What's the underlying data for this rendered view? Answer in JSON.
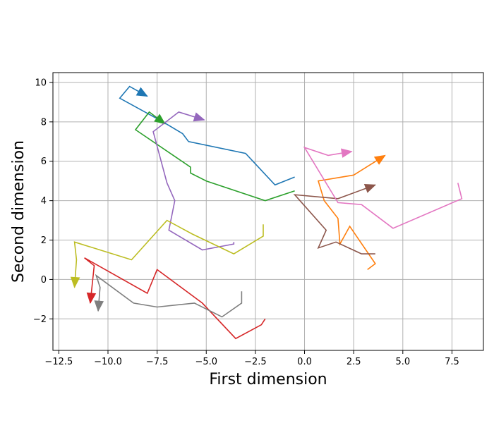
{
  "chart_data": {
    "type": "line",
    "title": "",
    "xlabel": "First dimension",
    "ylabel": "Second dimension",
    "xlim": [
      -12.8,
      9.1
    ],
    "ylim": [
      -3.6,
      10.5
    ],
    "xticks": [
      -12.5,
      -10.0,
      -7.5,
      -5.0,
      -2.5,
      0.0,
      2.5,
      5.0,
      7.5
    ],
    "xtick_labels": [
      "−12.5",
      "−10.0",
      "−7.5",
      "−5.0",
      "−2.5",
      "0.0",
      "2.5",
      "5.0",
      "7.5"
    ],
    "yticks": [
      -2,
      0,
      2,
      4,
      6,
      8,
      10
    ],
    "ytick_labels": [
      "−2",
      "0",
      "2",
      "4",
      "6",
      "8",
      "10"
    ],
    "grid": true,
    "series": [
      {
        "color": "#1f77b4",
        "points": [
          [
            -0.5,
            5.2
          ],
          [
            -1.5,
            4.8
          ],
          [
            -3.0,
            6.4
          ],
          [
            -5.9,
            7.0
          ],
          [
            -6.2,
            7.4
          ],
          [
            -7.2,
            8.0
          ],
          [
            -9.4,
            9.2
          ],
          [
            -8.9,
            9.8
          ],
          [
            -8.0,
            9.3
          ]
        ]
      },
      {
        "color": "#ff7f0e",
        "points": [
          [
            3.2,
            0.5
          ],
          [
            3.6,
            0.8
          ],
          [
            2.3,
            2.7
          ],
          [
            1.8,
            1.8
          ],
          [
            1.7,
            3.1
          ],
          [
            1.0,
            4.0
          ],
          [
            0.7,
            5.0
          ],
          [
            2.5,
            5.3
          ],
          [
            4.1,
            6.3
          ]
        ]
      },
      {
        "color": "#2ca02c",
        "points": [
          [
            -0.5,
            4.5
          ],
          [
            -2.0,
            4.0
          ],
          [
            -5.0,
            5.0
          ],
          [
            -5.8,
            5.4
          ],
          [
            -5.8,
            5.7
          ],
          [
            -8.6,
            7.6
          ],
          [
            -7.9,
            8.5
          ],
          [
            -7.1,
            7.9
          ]
        ]
      },
      {
        "color": "#d62728",
        "points": [
          [
            -2.0,
            -2.0
          ],
          [
            -2.2,
            -2.3
          ],
          [
            -3.5,
            -3.0
          ],
          [
            -5.2,
            -1.2
          ],
          [
            -7.5,
            0.5
          ],
          [
            -8.0,
            -0.7
          ],
          [
            -11.2,
            1.1
          ],
          [
            -10.7,
            0.7
          ],
          [
            -10.9,
            -1.2
          ]
        ]
      },
      {
        "color": "#9467bd",
        "points": [
          [
            -3.6,
            1.9
          ],
          [
            -3.6,
            1.8
          ],
          [
            -5.2,
            1.5
          ],
          [
            -6.9,
            2.5
          ],
          [
            -6.6,
            4.0
          ],
          [
            -7.0,
            4.9
          ],
          [
            -7.7,
            7.5
          ],
          [
            -6.4,
            8.5
          ],
          [
            -5.1,
            8.1
          ]
        ]
      },
      {
        "color": "#8c564b",
        "points": [
          [
            3.6,
            1.3
          ],
          [
            2.9,
            1.3
          ],
          [
            1.6,
            1.9
          ],
          [
            0.7,
            1.6
          ],
          [
            1.1,
            2.5
          ],
          [
            -0.5,
            4.3
          ],
          [
            1.7,
            4.1
          ],
          [
            3.6,
            4.8
          ]
        ]
      },
      {
        "color": "#e377c2",
        "points": [
          [
            7.8,
            4.9
          ],
          [
            8.0,
            4.1
          ],
          [
            4.5,
            2.6
          ],
          [
            2.9,
            3.8
          ],
          [
            1.7,
            3.9
          ],
          [
            0.0,
            6.7
          ],
          [
            1.2,
            6.3
          ],
          [
            2.4,
            6.5
          ]
        ]
      },
      {
        "color": "#7f7f7f",
        "points": [
          [
            -3.2,
            -0.6
          ],
          [
            -3.2,
            -1.2
          ],
          [
            -4.2,
            -1.9
          ],
          [
            -5.6,
            -1.2
          ],
          [
            -7.5,
            -1.4
          ],
          [
            -8.7,
            -1.2
          ],
          [
            -10.6,
            0.2
          ],
          [
            -10.4,
            -0.4
          ],
          [
            -10.5,
            -1.6
          ]
        ]
      },
      {
        "color": "#bcbd22",
        "points": [
          [
            -2.1,
            2.8
          ],
          [
            -2.1,
            2.2
          ],
          [
            -3.6,
            1.3
          ],
          [
            -5.7,
            2.3
          ],
          [
            -7.0,
            3.0
          ],
          [
            -8.8,
            1.0
          ],
          [
            -11.7,
            1.9
          ],
          [
            -11.6,
            1.0
          ],
          [
            -11.7,
            -0.4
          ]
        ]
      }
    ]
  }
}
